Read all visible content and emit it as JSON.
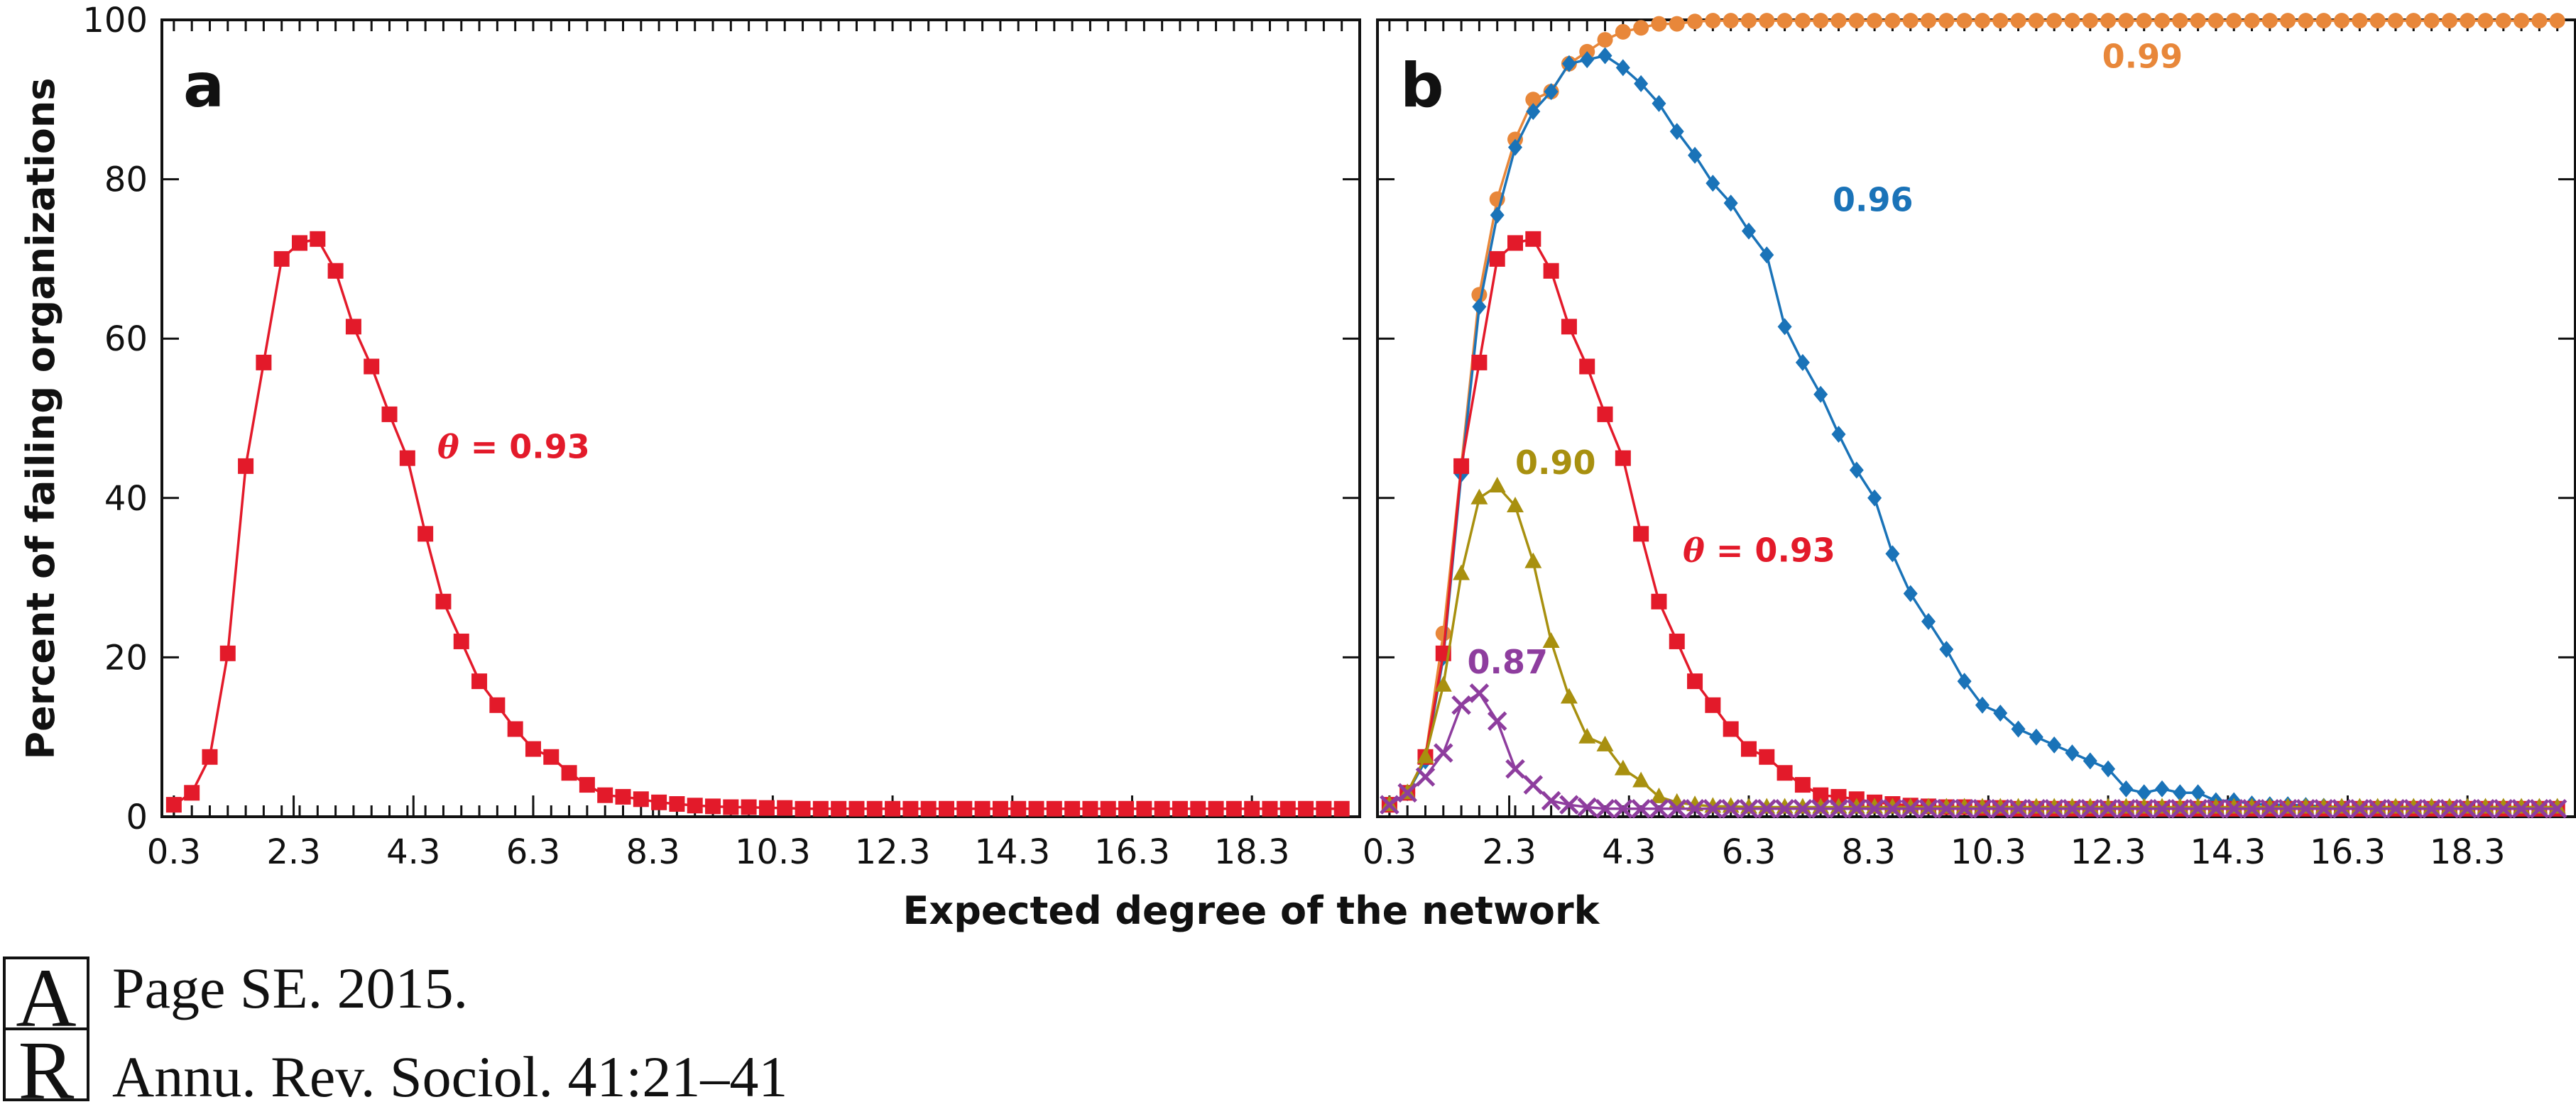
{
  "chart_data": [
    {
      "type": "line",
      "panel_label": "a",
      "xlabel": "Expected degree of the network",
      "ylabel": "Percent of failing organizations",
      "xlim": [
        0.1,
        20.1
      ],
      "ylim": [
        0,
        100
      ],
      "xticks": [
        0.3,
        2.3,
        4.3,
        6.3,
        8.3,
        10.3,
        12.3,
        14.3,
        16.3,
        18.3
      ],
      "xtick_labels": [
        "0.3",
        "2.3",
        "4.3",
        "6.3",
        "8.3",
        "10.3",
        "12.3",
        "14.3",
        "16.3",
        "18.3"
      ],
      "yticks": [
        0,
        20,
        40,
        60,
        80,
        100
      ],
      "ytick_labels": [
        "0",
        "20",
        "40",
        "60",
        "80",
        "100"
      ],
      "series": [
        {
          "label_prefix": "θ",
          "label": " = 0.93",
          "color": "#e31a2a",
          "marker": "square",
          "label_pos": [
            4.7,
            45
          ],
          "x": [
            0.3,
            0.6,
            0.9,
            1.2,
            1.5,
            1.8,
            2.1,
            2.4,
            2.7,
            3.0,
            3.3,
            3.6,
            3.9,
            4.2,
            4.5,
            4.8,
            5.1,
            5.4,
            5.7,
            6.0,
            6.3,
            6.6,
            6.9,
            7.2,
            7.5,
            7.8,
            8.1,
            8.4,
            8.7,
            9.0,
            9.3,
            9.6,
            9.9,
            10.2,
            10.5,
            10.8,
            11.1,
            11.4,
            11.7,
            12.0,
            12.3,
            12.6,
            12.9,
            13.2,
            13.5,
            13.8,
            14.1,
            14.4,
            14.7,
            15.0,
            15.3,
            15.6,
            15.9,
            16.2,
            16.5,
            16.8,
            17.1,
            17.4,
            17.7,
            18.0,
            18.3,
            18.6,
            18.9,
            19.2,
            19.5,
            19.8
          ],
          "y": [
            1.5,
            3,
            7.5,
            20.5,
            44,
            57,
            70,
            72,
            72.5,
            68.5,
            61.5,
            56.5,
            50.5,
            45,
            35.5,
            27,
            22,
            17,
            14,
            11,
            8.5,
            7.5,
            5.5,
            4,
            2.7,
            2.5,
            2.2,
            1.8,
            1.6,
            1.4,
            1.3,
            1.2,
            1.2,
            1.1,
            1.1,
            1.0,
            1.0,
            1.0,
            1.0,
            1.0,
            1.0,
            1.0,
            1.0,
            1.0,
            1.0,
            1.0,
            1.0,
            1.0,
            1.0,
            1.0,
            1.0,
            1.0,
            1.0,
            1.0,
            1.0,
            1.0,
            1.0,
            1.0,
            1.0,
            1.0,
            1.0,
            1.0,
            1.0,
            1.0,
            1.0,
            1.0
          ]
        }
      ]
    },
    {
      "type": "line",
      "panel_label": "b",
      "xlim": [
        0.1,
        20.1
      ],
      "ylim": [
        0,
        100
      ],
      "xticks": [
        0.3,
        2.3,
        4.3,
        6.3,
        8.3,
        10.3,
        12.3,
        14.3,
        16.3,
        18.3
      ],
      "xtick_labels": [
        "0.3",
        "2.3",
        "4.3",
        "6.3",
        "8.3",
        "10.3",
        "12.3",
        "14.3",
        "16.3",
        "18.3"
      ],
      "yticks": [
        0,
        20,
        40,
        60,
        80,
        100
      ],
      "series": [
        {
          "label": "0.99",
          "color": "#e8873a",
          "marker": "circle",
          "label_pos": [
            12.2,
            94
          ],
          "x": [
            0.3,
            0.6,
            0.9,
            1.2,
            1.5,
            1.8,
            2.1,
            2.4,
            2.7,
            3.0,
            3.3,
            3.6,
            3.9,
            4.2,
            4.5,
            4.8,
            5.1,
            5.4,
            5.7,
            6.0,
            6.3,
            6.6,
            6.9,
            7.2,
            7.5,
            7.8,
            8.1,
            8.4,
            8.7,
            9.0,
            9.3,
            9.6,
            9.9,
            10.2,
            10.5,
            10.8,
            11.1,
            11.4,
            11.7,
            12.0,
            12.3,
            12.6,
            12.9,
            13.2,
            13.5,
            13.8,
            14.1,
            14.4,
            14.7,
            15.0,
            15.3,
            15.6,
            15.9,
            16.2,
            16.5,
            16.8,
            17.1,
            17.4,
            17.7,
            18.0,
            18.3,
            18.6,
            18.9,
            19.2,
            19.5,
            19.8
          ],
          "y": [
            1.5,
            3,
            7.5,
            23,
            44,
            65.5,
            77.5,
            85,
            90,
            91,
            94.5,
            96,
            97.5,
            98.5,
            99,
            99.5,
            99.5,
            99.8,
            99.9,
            99.9,
            99.9,
            99.9,
            99.9,
            99.9,
            99.9,
            99.9,
            99.9,
            99.9,
            99.9,
            99.9,
            99.9,
            99.9,
            99.9,
            99.9,
            99.9,
            99.9,
            99.9,
            99.9,
            99.9,
            99.9,
            99.9,
            99.9,
            99.9,
            99.9,
            99.9,
            99.9,
            99.9,
            99.9,
            99.9,
            99.9,
            99.9,
            99.9,
            99.9,
            99.9,
            99.9,
            99.9,
            99.9,
            99.9,
            99.9,
            99.9,
            99.9,
            99.9,
            99.9,
            99.9,
            99.9,
            99.9
          ]
        },
        {
          "label": "0.96",
          "color": "#1a73b8",
          "marker": "diamond",
          "label_pos": [
            7.7,
            76
          ],
          "x": [
            0.3,
            0.6,
            0.9,
            1.2,
            1.5,
            1.8,
            2.1,
            2.4,
            2.7,
            3.0,
            3.3,
            3.6,
            3.9,
            4.2,
            4.5,
            4.8,
            5.1,
            5.4,
            5.7,
            6.0,
            6.3,
            6.6,
            6.9,
            7.2,
            7.5,
            7.8,
            8.1,
            8.4,
            8.7,
            9.0,
            9.3,
            9.6,
            9.9,
            10.2,
            10.5,
            10.8,
            11.1,
            11.4,
            11.7,
            12.0,
            12.3,
            12.6,
            12.9,
            13.2,
            13.5,
            13.8,
            14.1,
            14.4,
            14.7,
            15.0,
            15.3,
            15.6,
            15.9,
            16.2,
            16.5,
            16.8,
            17.1,
            17.4,
            17.7,
            18.0,
            18.3,
            18.6,
            18.9,
            19.2,
            19.5,
            19.8
          ],
          "y": [
            1.5,
            3,
            7,
            20,
            43,
            64,
            75.5,
            84,
            88.5,
            91,
            94.5,
            95,
            95.5,
            94,
            92,
            89.5,
            86,
            83,
            79.5,
            77,
            73.5,
            70.5,
            61.5,
            57,
            53,
            48,
            43.5,
            40,
            33,
            28,
            24.5,
            21,
            17,
            14,
            13,
            11,
            10,
            9,
            8,
            7,
            6,
            3.5,
            3,
            3.5,
            3,
            3,
            2,
            2,
            1.6,
            1.5,
            1.5,
            1.4,
            1.3,
            1.2,
            1.2,
            1.2,
            1.2,
            1.2,
            1.2,
            1.2,
            1.2,
            1.2,
            1.2,
            1.2,
            1.2,
            1.2
          ]
        },
        {
          "label_prefix": "θ",
          "label": " = 0.93",
          "color": "#e31a2a",
          "marker": "square",
          "label_pos": [
            5.2,
            32
          ],
          "x": [
            0.3,
            0.6,
            0.9,
            1.2,
            1.5,
            1.8,
            2.1,
            2.4,
            2.7,
            3.0,
            3.3,
            3.6,
            3.9,
            4.2,
            4.5,
            4.8,
            5.1,
            5.4,
            5.7,
            6.0,
            6.3,
            6.6,
            6.9,
            7.2,
            7.5,
            7.8,
            8.1,
            8.4,
            8.7,
            9.0,
            9.3,
            9.6,
            9.9,
            10.2,
            10.5,
            10.8,
            11.1,
            11.4,
            11.7,
            12.0,
            12.3,
            12.6,
            12.9,
            13.2,
            13.5,
            13.8,
            14.1,
            14.4,
            14.7,
            15.0,
            15.3,
            15.6,
            15.9,
            16.2,
            16.5,
            16.8,
            17.1,
            17.4,
            17.7,
            18.0,
            18.3,
            18.6,
            18.9,
            19.2,
            19.5,
            19.8
          ],
          "y": [
            1.5,
            3,
            7.5,
            20.5,
            44,
            57,
            70,
            72,
            72.5,
            68.5,
            61.5,
            56.5,
            50.5,
            45,
            35.5,
            27,
            22,
            17,
            14,
            11,
            8.5,
            7.5,
            5.5,
            4,
            2.7,
            2.5,
            2.2,
            1.8,
            1.6,
            1.4,
            1.3,
            1.2,
            1.2,
            1.1,
            1.1,
            1.0,
            1.0,
            1.0,
            1.0,
            1.0,
            1.0,
            1.0,
            1.0,
            1.0,
            1.0,
            1.0,
            1.0,
            1.0,
            1.0,
            1.0,
            1.0,
            1.0,
            1.0,
            1.0,
            1.0,
            1.0,
            1.0,
            1.0,
            1.0,
            1.0,
            1.0,
            1.0,
            1.0,
            1.0,
            1.0,
            1.0
          ]
        },
        {
          "label": "0.90",
          "color": "#a8900f",
          "marker": "triangle",
          "label_pos": [
            2.4,
            43
          ],
          "x": [
            0.3,
            0.6,
            0.9,
            1.2,
            1.5,
            1.8,
            2.1,
            2.4,
            2.7,
            3.0,
            3.3,
            3.6,
            3.9,
            4.2,
            4.5,
            4.8,
            5.1,
            5.4,
            5.7,
            6.0,
            6.3,
            6.6,
            6.9,
            7.2,
            7.5,
            7.8,
            8.1,
            8.4,
            8.7,
            9.0,
            9.3,
            9.6,
            9.9,
            10.2,
            10.5,
            10.8,
            11.1,
            11.4,
            11.7,
            12.0,
            12.3,
            12.6,
            12.9,
            13.2,
            13.5,
            13.8,
            14.1,
            14.4,
            14.7,
            15.0,
            15.3,
            15.6,
            15.9,
            16.2,
            16.5,
            16.8,
            17.1,
            17.4,
            17.7,
            18.0,
            18.3,
            18.6,
            18.9,
            19.2,
            19.5,
            19.8
          ],
          "y": [
            1.5,
            3,
            7.5,
            16.5,
            30.5,
            40,
            41.5,
            39,
            32,
            22,
            15,
            10,
            9,
            6,
            4.5,
            2.5,
            1.8,
            1.5,
            1.3,
            1.3,
            1.2,
            1.2,
            1.2,
            1.2,
            1.2,
            1.2,
            1.2,
            1.2,
            1.2,
            1.2,
            1.2,
            1.2,
            1.2,
            1.2,
            1.2,
            1.2,
            1.2,
            1.2,
            1.2,
            1.2,
            1.2,
            1.2,
            1.2,
            1.2,
            1.2,
            1.2,
            1.2,
            1.2,
            1.2,
            1.2,
            1.2,
            1.2,
            1.2,
            1.2,
            1.2,
            1.2,
            1.2,
            1.2,
            1.2,
            1.2,
            1.2,
            1.2,
            1.2,
            1.2,
            1.2,
            1.2
          ]
        },
        {
          "label": "0.87",
          "color": "#8e3d9e",
          "marker": "x",
          "label_pos": [
            1.6,
            18
          ],
          "x": [
            0.3,
            0.6,
            0.9,
            1.2,
            1.5,
            1.8,
            2.1,
            2.4,
            2.7,
            3.0,
            3.3,
            3.6,
            3.9,
            4.2,
            4.5,
            4.8,
            5.1,
            5.4,
            5.7,
            6.0,
            6.3,
            6.6,
            6.9,
            7.2,
            7.5,
            7.8,
            8.1,
            8.4,
            8.7,
            9.0,
            9.3,
            9.6,
            9.9,
            10.2,
            10.5,
            10.8,
            11.1,
            11.4,
            11.7,
            12.0,
            12.3,
            12.6,
            12.9,
            13.2,
            13.5,
            13.8,
            14.1,
            14.4,
            14.7,
            15.0,
            15.3,
            15.6,
            15.9,
            16.2,
            16.5,
            16.8,
            17.1,
            17.4,
            17.7,
            18.0,
            18.3,
            18.6,
            18.9,
            19.2,
            19.5,
            19.8
          ],
          "y": [
            1.5,
            3,
            5,
            8,
            14,
            15.5,
            12,
            6,
            4,
            2,
            1.5,
            1.2,
            1.0,
            1.0,
            1.0,
            1.0,
            1.0,
            1.0,
            1.0,
            1.0,
            1.0,
            1.0,
            1.0,
            1.0,
            1.0,
            1.0,
            1.0,
            1.0,
            1.0,
            1.0,
            1.0,
            1.0,
            1.0,
            1.0,
            1.0,
            1.0,
            1.0,
            1.0,
            1.0,
            1.0,
            1.0,
            1.0,
            1.0,
            1.0,
            1.0,
            1.0,
            1.0,
            1.0,
            1.0,
            1.0,
            1.0,
            1.0,
            1.0,
            1.0,
            1.0,
            1.0,
            1.0,
            1.0,
            1.0,
            1.0,
            1.0,
            1.0,
            1.0,
            1.0,
            1.0,
            1.0
          ]
        }
      ]
    }
  ],
  "citation": {
    "line1": "Page SE. 2015.",
    "line2": "Annu. Rev. Sociol. 41:21–41"
  },
  "logo": {
    "letter1": "A",
    "letter2": "R"
  }
}
